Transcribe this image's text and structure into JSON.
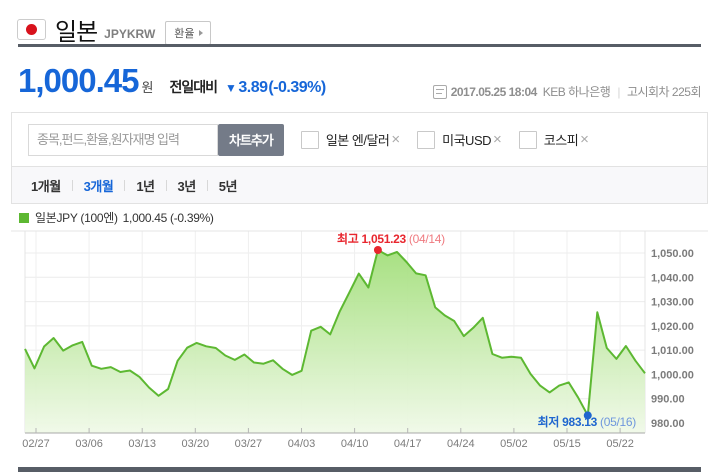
{
  "header": {
    "title": "일본",
    "code": "JPYKRW",
    "category_button": "환율"
  },
  "quote": {
    "price": "1,000.45",
    "currency_unit": "원",
    "change_label": "전일대비",
    "change_direction_icon": "down-triangle",
    "change_value": "3.89",
    "change_percent": "(-0.39%)",
    "timestamp": "2017.05.25 18:04",
    "bank": "KEB 하나은행",
    "separator": "|",
    "notice_round": "고시회차 225회"
  },
  "controls": {
    "search_placeholder": "종목,펀드,환율,원자재명 입력",
    "add_chart_button": "차트추가",
    "compare_items": [
      {
        "label": "일본 엔/달러",
        "remove": "×"
      },
      {
        "label": "미국USD",
        "remove": "×"
      },
      {
        "label": "코스피",
        "remove": "×"
      }
    ],
    "periods": [
      {
        "label": "1개월",
        "selected": false
      },
      {
        "label": "3개월",
        "selected": true
      },
      {
        "label": "1년",
        "selected": false
      },
      {
        "label": "3년",
        "selected": false
      },
      {
        "label": "5년",
        "selected": false
      }
    ]
  },
  "legend": {
    "series_label": "일본JPY (100엔)",
    "value": "1,000.45 (-0.39%)"
  },
  "colors": {
    "accent_blue": "#1666d8",
    "button_dark": "#747b88",
    "dark_divider": "#575d66",
    "green": "#5db832"
  },
  "chart_data": {
    "type": "area",
    "title": "일본JPY (100엔) 3개월 환율 차트",
    "series_name": "일본JPY",
    "values": [
      1010.5,
      1002.5,
      1011.5,
      1015.0,
      1009.8,
      1012.0,
      1013.4,
      1003.6,
      1002.3,
      1003.0,
      1001.0,
      1001.6,
      999.0,
      994.6,
      991.2,
      994.0,
      1005.6,
      1011.0,
      1013.0,
      1011.6,
      1010.9,
      1007.8,
      1006.0,
      1008.2,
      1004.9,
      1004.4,
      1005.8,
      1002.3,
      999.8,
      1001.5,
      1018.0,
      1019.6,
      1016.5,
      1026.0,
      1033.7,
      1041.5,
      1035.8,
      1051.23,
      1049.0,
      1050.4,
      1046.3,
      1041.6,
      1040.8,
      1027.6,
      1024.3,
      1022.0,
      1015.8,
      1019.2,
      1023.3,
      1008.4,
      1006.9,
      1007.3,
      1006.9,
      1000.2,
      995.4,
      992.6,
      995.4,
      996.7,
      990.4,
      983.13,
      1025.6,
      1010.9,
      1006.4,
      1011.7,
      1005.6,
      1000.45
    ],
    "y_axis": {
      "values": [
        1050,
        1040,
        1030,
        1020,
        1010,
        1000,
        990,
        980
      ],
      "labels": [
        "1,050.00",
        "1,040.00",
        "1,030.00",
        "1,020.00",
        "1,010.00",
        "1,000.00",
        "990.00",
        "980.00"
      ]
    },
    "x_ticks": [
      "02/27",
      "03/06",
      "03/13",
      "03/20",
      "03/27",
      "04/03",
      "04/10",
      "04/17",
      "04/24",
      "05/02",
      "05/15",
      "05/22"
    ],
    "annotations": {
      "max": {
        "prefix": "최고",
        "value": "1,051.23",
        "date": "(04/14)",
        "index": 37
      },
      "min": {
        "prefix": "최저",
        "value": "983.13",
        "date": "(05/16)",
        "index": 59
      }
    },
    "grid": true,
    "legend_position": "top-left",
    "colors": {
      "line": "#5db832",
      "area_top": "#9bdc70",
      "area_bottom": "#f0f9e8",
      "max": "#e8262e",
      "max_date": "#ef7a80",
      "min": "#1f66cf",
      "min_date": "#6f97dd",
      "grid": "#ececec",
      "axis": "#a8a8a8",
      "tick": "#b5b5b5"
    }
  }
}
